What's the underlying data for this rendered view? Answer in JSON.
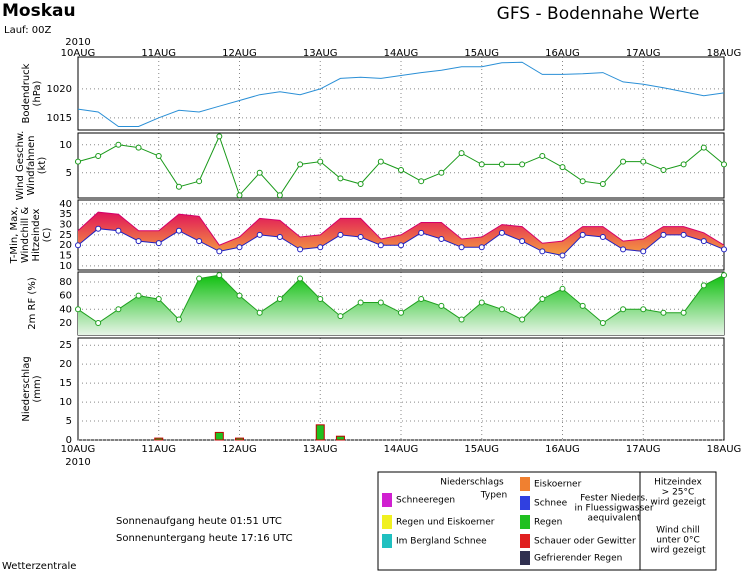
{
  "header": {
    "station": "Moskau",
    "run": "Lauf: 00Z",
    "title": "GFS - Bodennahe Werte"
  },
  "time_axis": {
    "year": "2010",
    "labels": [
      "10AUG",
      "11AUG",
      "12AUG",
      "13AUG",
      "14AUG",
      "15AUG",
      "16AUG",
      "17AUG",
      "18AUG"
    ]
  },
  "chart_data": [
    {
      "type": "line",
      "ylabel": [
        "Bodendruck",
        "(hPa)"
      ],
      "ylim": [
        1012.9,
        1025.5
      ],
      "yticks": [
        1015,
        1020
      ],
      "grid": true,
      "series": [
        {
          "color": "#2a8fd6",
          "values": [
            1016.5,
            1016,
            1013.5,
            1013.5,
            1015,
            1016.3,
            1016,
            1017,
            1018,
            1019,
            1019.5,
            1019,
            1020,
            1021.8,
            1022,
            1021.8,
            1022.3,
            1022.8,
            1023.2,
            1023.8,
            1023.8,
            1024.5,
            1024.6,
            1022.5,
            1022.5,
            1022.6,
            1022.8,
            1021.2,
            1020.8,
            1020.2,
            1019.5,
            1018.8,
            1019.3
          ]
        }
      ]
    },
    {
      "type": "line",
      "ylabel": [
        "Wind Geschw.",
        "Windfahnen",
        "(kt)"
      ],
      "ylim": [
        0.5,
        12.1
      ],
      "yticks": [
        5,
        10
      ],
      "grid": true,
      "markers": true,
      "series": [
        {
          "color": "#1a9a1a",
          "values": [
            7,
            8,
            10,
            9.5,
            8,
            2.5,
            3.5,
            11.5,
            1,
            5,
            1,
            6.5,
            7,
            4,
            3,
            7,
            5.5,
            3.5,
            5,
            8.5,
            6.5,
            6.5,
            6.5,
            8,
            6,
            3.5,
            3,
            7,
            7,
            5.5,
            6.5,
            9.5,
            6.5
          ]
        }
      ]
    },
    {
      "type": "band",
      "ylabel": [
        "T-Min, Max,",
        "Windchill &",
        "Hitzeindex",
        "(C)"
      ],
      "ylim": [
        8,
        41.9
      ],
      "yticks": [
        10,
        15,
        20,
        25,
        30,
        35,
        40
      ],
      "grid": true,
      "colors": [
        "#e0145a",
        "#f5a040"
      ],
      "series": [
        {
          "color": "#d4006a",
          "values": [
            27,
            36,
            35,
            27,
            27,
            35,
            34,
            20,
            24,
            33,
            32,
            24,
            25,
            33,
            33,
            23,
            25,
            31,
            31,
            23,
            24,
            30,
            29,
            21,
            22,
            29,
            29,
            22,
            23,
            29,
            29,
            26,
            20
          ]
        },
        {
          "color": "#2020c0",
          "values": [
            20,
            28,
            27,
            22,
            21,
            27,
            22,
            17,
            19,
            25,
            24,
            18,
            19,
            25,
            24,
            20,
            20,
            26,
            23,
            19,
            19,
            26,
            22,
            17,
            15,
            25,
            24,
            18,
            17,
            25,
            25,
            22,
            18
          ]
        }
      ]
    },
    {
      "type": "area",
      "ylabel": [
        "2m RF (%)"
      ],
      "ylim": [
        2.4,
        94.6
      ],
      "yticks": [
        20,
        40,
        60,
        80
      ],
      "grid": true,
      "markers": true,
      "colors": [
        "#10c010",
        "#e8f4e8"
      ],
      "series": [
        {
          "color": "#20a020",
          "values": [
            40,
            20,
            40,
            60,
            55,
            25,
            85,
            90,
            60,
            35,
            55,
            85,
            55,
            30,
            50,
            50,
            35,
            55,
            45,
            25,
            50,
            40,
            25,
            55,
            70,
            45,
            20,
            40,
            40,
            35,
            35,
            75,
            90
          ]
        }
      ]
    },
    {
      "type": "bar",
      "ylabel": [
        "Niederschlag",
        "(mm)"
      ],
      "ylim": [
        0,
        26.9
      ],
      "yticks": [
        0,
        5,
        10,
        15,
        20,
        25
      ],
      "grid": true,
      "series": [
        {
          "color": "#20c020",
          "values": [
            0,
            0,
            0,
            0,
            0.5,
            0,
            0,
            2,
            0.5,
            0,
            0,
            0,
            4,
            1,
            0,
            0,
            0,
            0,
            0,
            0,
            0,
            0,
            0,
            0,
            0,
            0,
            0,
            0,
            0,
            0,
            0,
            0,
            0
          ]
        }
      ]
    }
  ],
  "sun": {
    "rise": "Sonnenaufgang heute 01:51 UTC",
    "set": "Sonnenuntergang heute 17:16 UTC"
  },
  "footer": "Wetterzentrale",
  "legend": {
    "title": [
      "Niederschlags",
      "Typen"
    ],
    "items": [
      {
        "label": "Schneeregen",
        "color": "#d020d0"
      },
      {
        "label": "Regen und Eiskoerner",
        "color": "#f0f020"
      },
      {
        "label": "Im Bergland Schnee",
        "color": "#20c0c0"
      },
      {
        "label": "Eiskoerner",
        "color": "#f08030"
      },
      {
        "label": "Schnee",
        "color": "#3040e0"
      },
      {
        "label": "Regen",
        "color": "#20c020"
      },
      {
        "label": "Schauer oder Gewitter",
        "color": "#e02020"
      },
      {
        "label": "Gefrierender Regen",
        "color": "#303050"
      }
    ],
    "note": [
      "Fester Nieders.",
      "in Fluessigwasser",
      "aequivalent"
    ],
    "heat": [
      "Hitzeindex",
      "> 25°C",
      "wird gezeigt"
    ],
    "chill": [
      "Wind chill",
      "unter 0°C",
      "wird gezeigt"
    ]
  }
}
